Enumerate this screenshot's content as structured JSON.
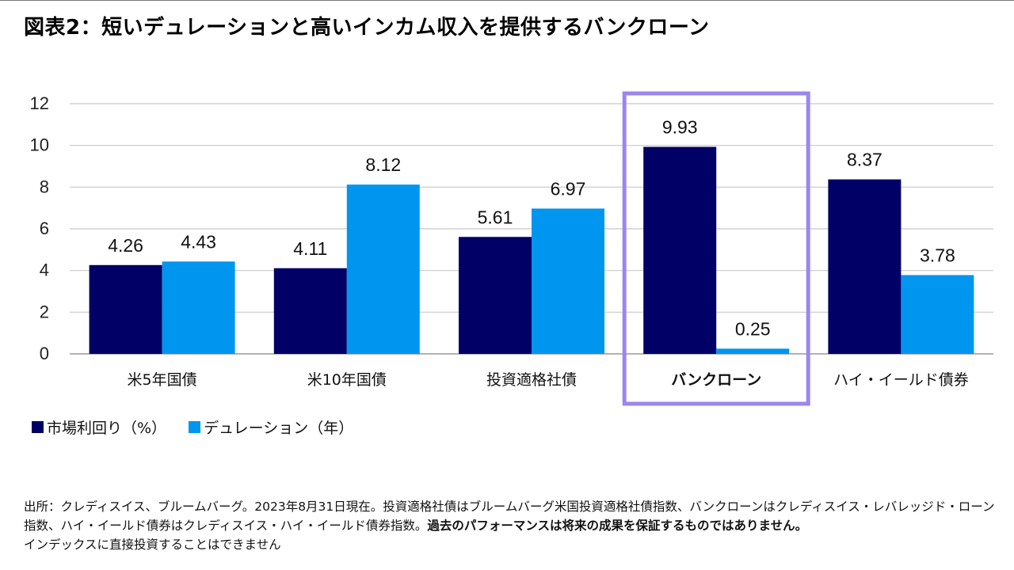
{
  "title": "図表2：短いデュレーションと高いインカム収入を提供するバンクローン",
  "chart_data": {
    "type": "bar",
    "categories": [
      "米5年国債",
      "米10年国債",
      "投資適格社債",
      "バンクローン",
      "ハイ・イールド債券"
    ],
    "highlight_category": "バンクローン",
    "series": [
      {
        "name": "市場利回り（%）",
        "color": "#000066",
        "values": [
          4.26,
          4.11,
          5.61,
          9.93,
          8.37
        ]
      },
      {
        "name": "デュレーション（年）",
        "color": "#0096f0",
        "values": [
          4.43,
          8.12,
          6.97,
          0.25,
          3.78
        ]
      }
    ],
    "data_labels": {
      "series0": [
        "4.26",
        "4.11",
        "5.61",
        "9.93",
        "8.37"
      ],
      "series1": [
        "4.43",
        "8.12",
        "6.97",
        "0.25",
        "3.78"
      ]
    },
    "y_ticks": [
      "0",
      "2",
      "4",
      "6",
      "8",
      "10",
      "12"
    ],
    "ylim": [
      0,
      12
    ],
    "grid": true,
    "highlight_color": "#9b86f0",
    "legend_position": "bottom-left"
  },
  "legend": {
    "item1": "市場利回り（%）",
    "item2": "デュレーション（年）"
  },
  "note": {
    "text": "出所：クレディスイス、ブルームバーグ。2023年8月31日現在。投資適格社債はブルームバーグ米国投資適格社債指数、バンクローンはクレディスイス・レバレッジド・ローン指数、ハイ・イールド債券はクレディスイス・ハイ・イールド債券指数。",
    "bold": "過去のパフォーマンスは将来の成果を保証するものではありません。",
    "tail": "インデックスに直接投資することはできません"
  }
}
